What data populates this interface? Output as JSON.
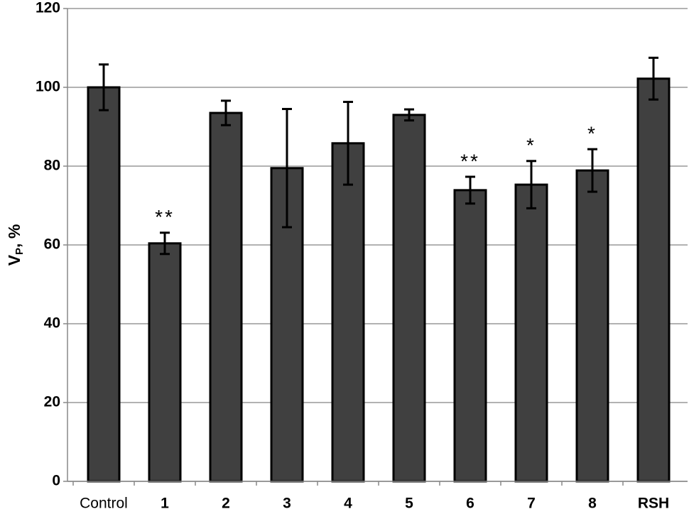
{
  "chart_data": {
    "type": "bar",
    "y_label": [
      "V",
      "P",
      ", %"
    ],
    "categories": [
      "Control",
      "1",
      "2",
      "3",
      "4",
      "5",
      "6",
      "7",
      "8",
      "RSH"
    ],
    "values": [
      100,
      60.4,
      93.5,
      79.5,
      85.8,
      93,
      73.9,
      75.3,
      78.9,
      102.2
    ],
    "errors": [
      5.8,
      2.7,
      3.1,
      15,
      10.5,
      1.4,
      3.4,
      6,
      5.4,
      5.3
    ],
    "annotations": [
      null,
      "**",
      null,
      null,
      null,
      null,
      "**",
      "*",
      "*",
      null
    ],
    "color": "#404040",
    "ylim": [
      0,
      120
    ],
    "yticks": [
      0,
      20,
      40,
      60,
      80,
      100,
      120
    ],
    "grid": true
  }
}
